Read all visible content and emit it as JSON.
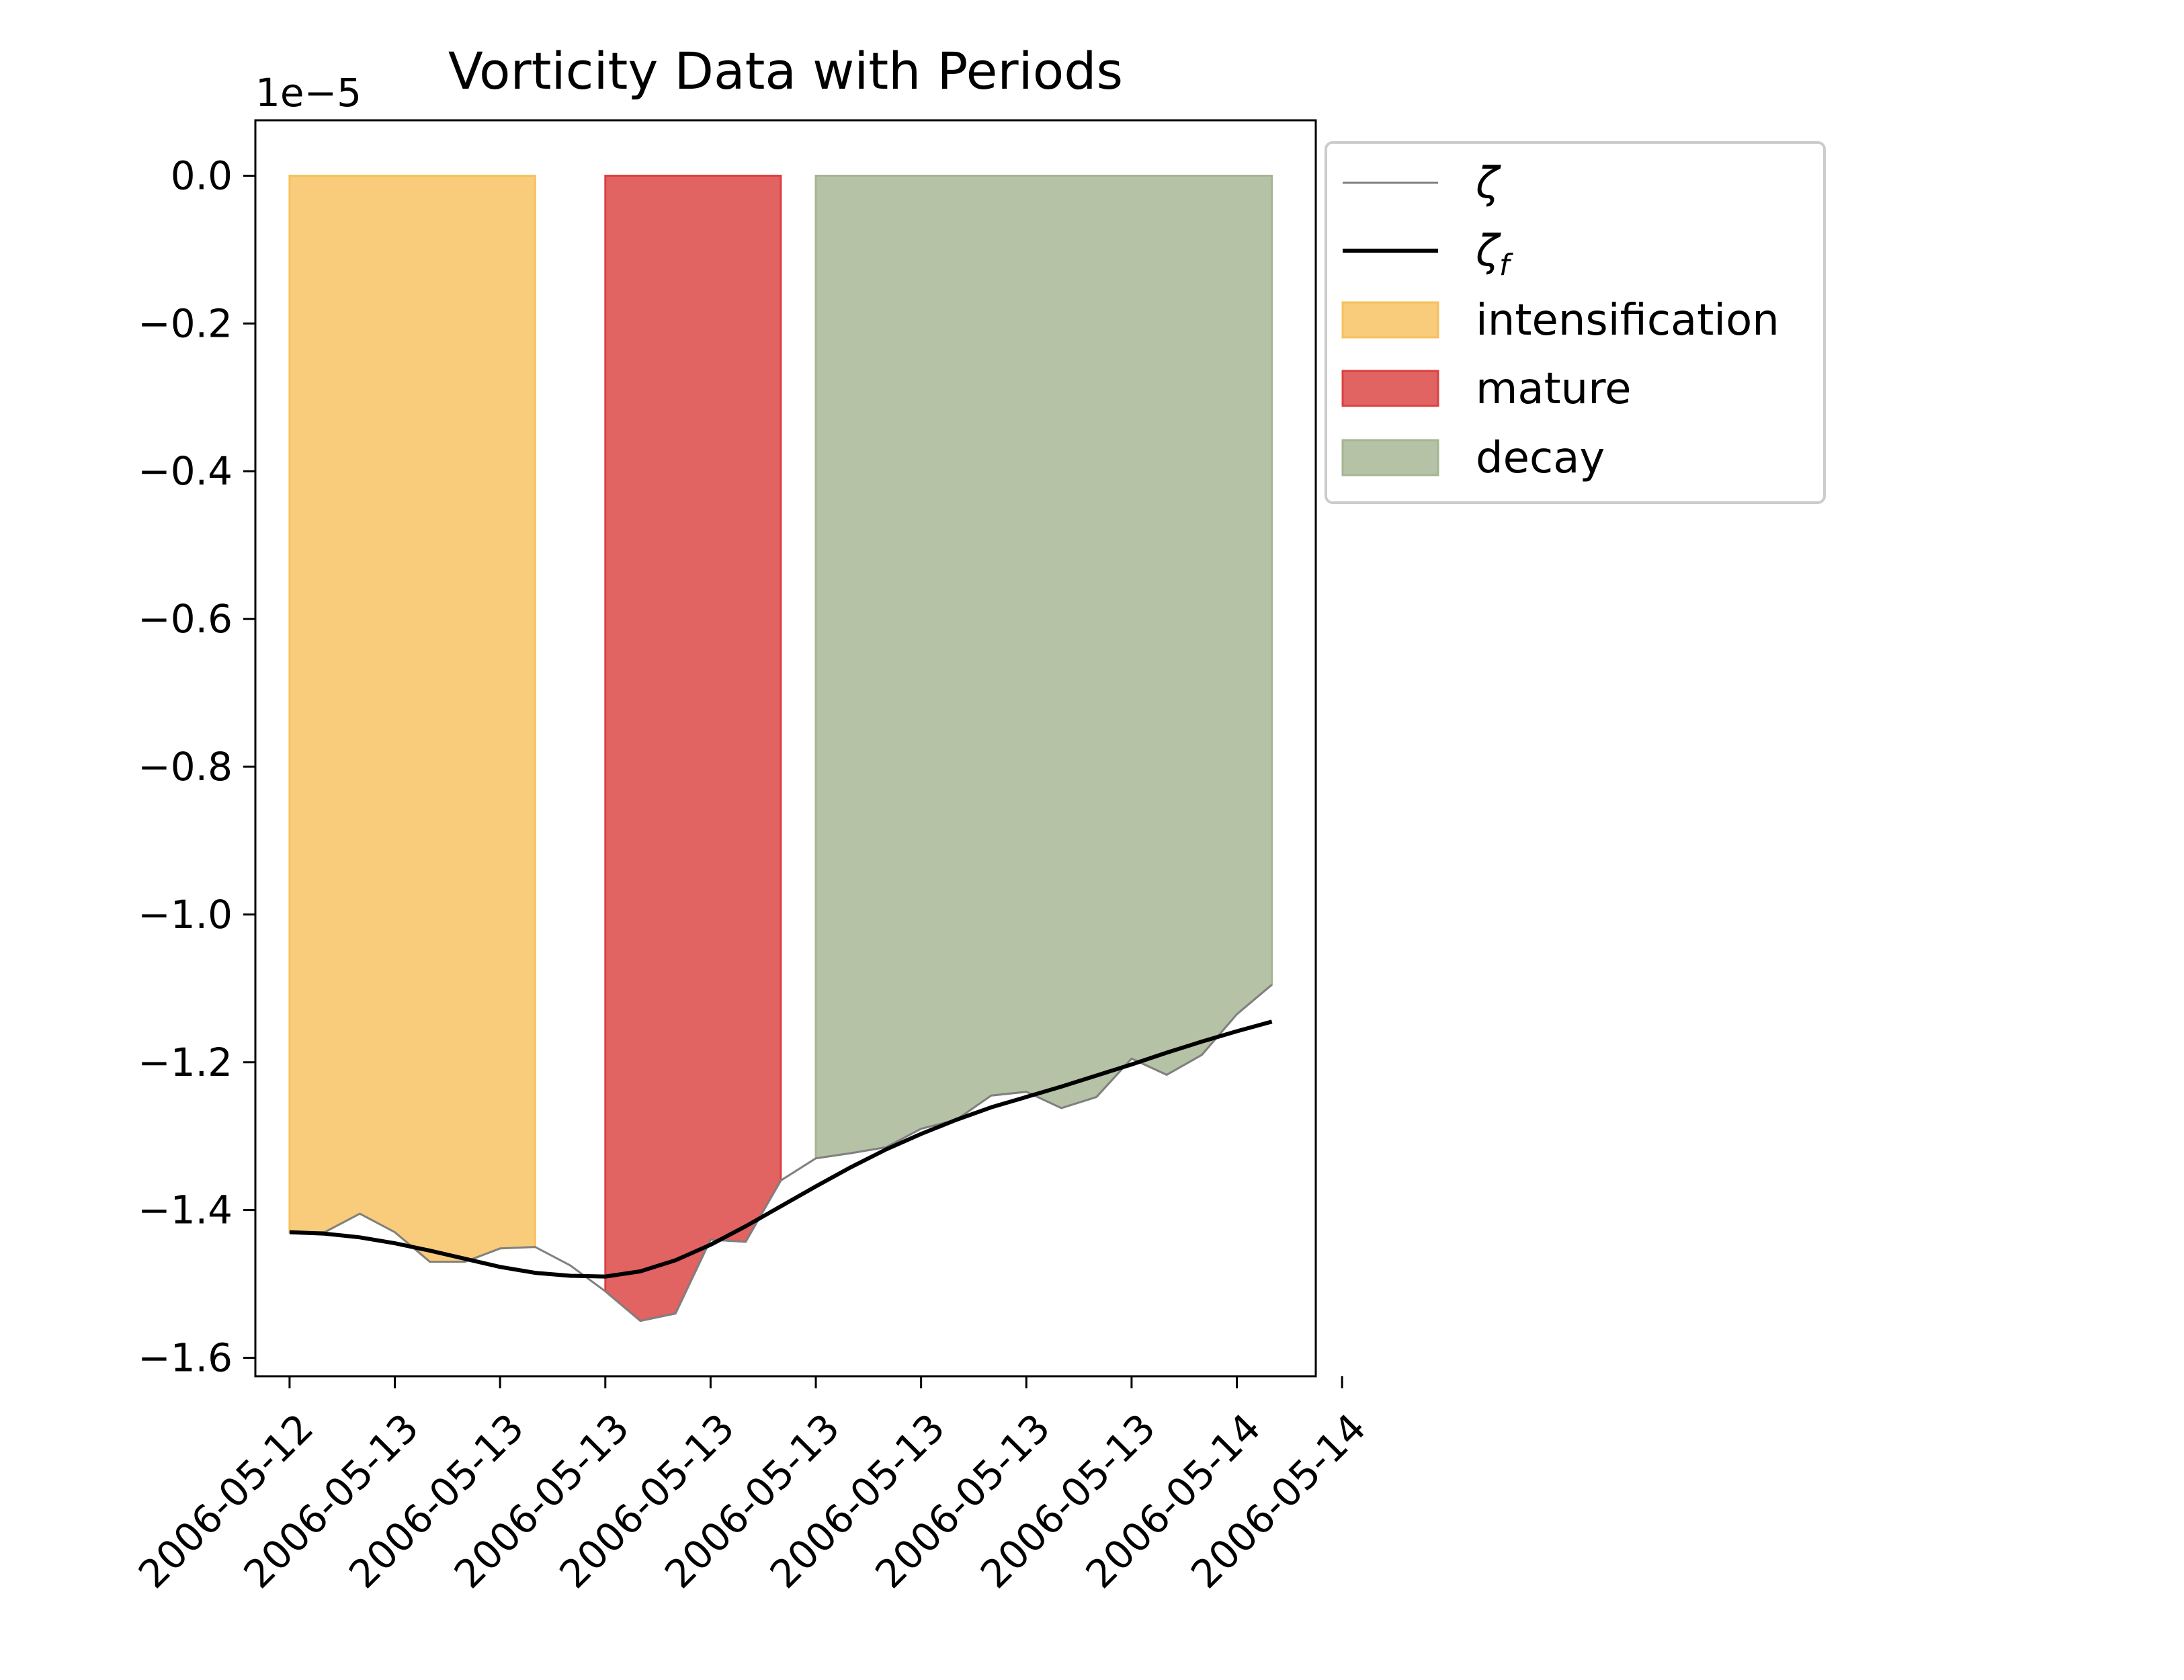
{
  "chart_data": {
    "type": "line",
    "title": "Vorticity Data with Periods",
    "xlabel": "",
    "ylabel": "",
    "y_offset_label": "1e−5",
    "ylim": [
      -1.625,
      0.075
    ],
    "yticks": [
      0.0,
      -0.2,
      -0.4,
      -0.6,
      -0.8,
      -1.0,
      -1.2,
      -1.4,
      -1.6
    ],
    "ytick_labels": [
      "0.0",
      "−0.2",
      "−0.4",
      "−0.6",
      "−0.8",
      "−1.0",
      "−1.2",
      "−1.4",
      "−1.6"
    ],
    "xlim": [
      -0.325,
      9.75
    ],
    "xticks": [
      0,
      1,
      2,
      3,
      4,
      5,
      6,
      7,
      8,
      9,
      10
    ],
    "xtick_labels": [
      "2006-05-12",
      "2006-05-13",
      "2006-05-13",
      "2006-05-13",
      "2006-05-13",
      "2006-05-13",
      "2006-05-13",
      "2006-05-13",
      "2006-05-13",
      "2006-05-14",
      "2006-05-14"
    ],
    "x_unit_note": "one x unit equals one tick interval",
    "grid": false,
    "legend_position": "outside upper right",
    "series": [
      {
        "name": "ζ",
        "color": "#808080",
        "x": [
          0.0,
          0.333,
          0.667,
          1.0,
          1.333,
          1.667,
          2.0,
          2.333,
          2.667,
          3.0,
          3.333,
          3.667,
          4.0,
          4.333,
          4.667,
          5.0,
          5.333,
          5.667,
          6.0,
          6.333,
          6.667,
          7.0,
          7.333,
          7.667,
          8.0,
          8.333,
          8.667,
          9.0,
          9.333
        ],
        "values": [
          -1.43,
          -1.43,
          -1.405,
          -1.43,
          -1.47,
          -1.47,
          -1.452,
          -1.45,
          -1.475,
          -1.51,
          -1.55,
          -1.54,
          -1.44,
          -1.443,
          -1.36,
          -1.33,
          -1.323,
          -1.315,
          -1.29,
          -1.278,
          -1.245,
          -1.24,
          -1.262,
          -1.247,
          -1.195,
          -1.217,
          -1.19,
          -1.135,
          -1.095
        ]
      },
      {
        "name": "ζ_f",
        "color": "#000000",
        "x": [
          0.0,
          0.333,
          0.667,
          1.0,
          1.333,
          1.667,
          2.0,
          2.333,
          2.667,
          3.0,
          3.333,
          3.667,
          4.0,
          4.333,
          4.667,
          5.0,
          5.333,
          5.667,
          6.0,
          6.333,
          6.667,
          7.0,
          7.333,
          7.667,
          8.0,
          8.333,
          8.667,
          9.0,
          9.333
        ],
        "values": [
          -1.43,
          -1.432,
          -1.437,
          -1.445,
          -1.455,
          -1.466,
          -1.477,
          -1.485,
          -1.489,
          -1.49,
          -1.483,
          -1.468,
          -1.447,
          -1.422,
          -1.395,
          -1.368,
          -1.342,
          -1.318,
          -1.297,
          -1.278,
          -1.261,
          -1.247,
          -1.233,
          -1.218,
          -1.203,
          -1.187,
          -1.172,
          -1.158,
          -1.145
        ]
      }
    ],
    "periods": [
      {
        "name": "intensification",
        "start": 0.0,
        "end": 2.333,
        "color": "#f6c15d"
      },
      {
        "name": "mature",
        "start": 3.0,
        "end": 4.667,
        "color": "#db4140"
      },
      {
        "name": "decay",
        "start": 5.0,
        "end": 9.333,
        "color": "#a5b593"
      }
    ]
  }
}
